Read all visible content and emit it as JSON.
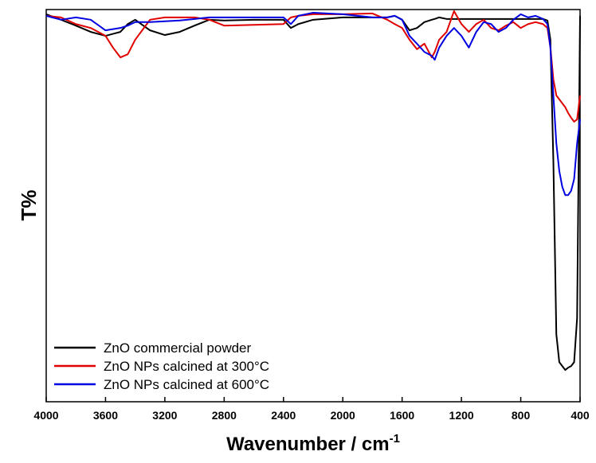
{
  "chart_data": {
    "type": "line",
    "x_label": "Wavenumber / cm",
    "x_label_superscript": "-1",
    "y_label": "T%",
    "xlim": [
      4000,
      400
    ],
    "ylim": [
      0,
      100
    ],
    "xticks": [
      4000,
      3600,
      3200,
      2800,
      2400,
      2000,
      1600,
      1200,
      800,
      400
    ],
    "legend": "lower left",
    "x": [
      4000,
      3900,
      3800,
      3700,
      3600,
      3550,
      3500,
      3450,
      3400,
      3300,
      3200,
      3100,
      3000,
      2900,
      2800,
      2600,
      2400,
      2350,
      2300,
      2200,
      2000,
      1800,
      1700,
      1650,
      1600,
      1550,
      1500,
      1450,
      1400,
      1380,
      1350,
      1300,
      1250,
      1200,
      1150,
      1100,
      1050,
      1000,
      950,
      900,
      850,
      800,
      750,
      700,
      650,
      620,
      600,
      580,
      560,
      540,
      520,
      500,
      480,
      460,
      440,
      420,
      400
    ],
    "series": [
      {
        "name": "ZnO commercial powder",
        "color": "#000000",
        "values": [
          98.8,
          97.4,
          95.9,
          94.3,
          93.3,
          93.8,
          94.3,
          96.3,
          97.4,
          94.7,
          93.5,
          94.3,
          95.9,
          97.4,
          97.2,
          97.4,
          97.4,
          95.3,
          96.3,
          97.4,
          98,
          98,
          98,
          98.4,
          97.4,
          94.7,
          95.3,
          96.8,
          97.4,
          97.6,
          98,
          97.6,
          97.6,
          97.6,
          97.6,
          97.6,
          97.6,
          97.6,
          97.6,
          97.6,
          97.6,
          97.6,
          97.6,
          97.6,
          97.6,
          97.2,
          92.3,
          61.3,
          17.2,
          10.1,
          9.1,
          8.1,
          8.7,
          9.1,
          10.1,
          21.3,
          98.4
        ]
      },
      {
        "name": "ZnO NPs calcined at 300°C",
        "color": "#e00000",
        "values": [
          98.4,
          98,
          96.3,
          95.3,
          93.3,
          90.3,
          87.8,
          88.6,
          92.3,
          97.4,
          98,
          98,
          98,
          97.4,
          95.9,
          96.1,
          96.3,
          98,
          98.4,
          98.8,
          98.8,
          99,
          97.4,
          96.3,
          95.3,
          92.3,
          89.9,
          91.3,
          87.8,
          89.2,
          92.3,
          94.3,
          99.6,
          96.3,
          94.3,
          96.3,
          97.4,
          95.3,
          94.7,
          95.9,
          96.8,
          95.3,
          96.3,
          96.8,
          96.3,
          95.3,
          90.3,
          82.2,
          78.1,
          77.1,
          76.1,
          75.1,
          73.6,
          72.4,
          71.4,
          72,
          78.1
        ]
      },
      {
        "name": "ZnO NPs calcined at 600°C",
        "color": "#0000e0",
        "values": [
          98.4,
          97.4,
          98,
          97.4,
          94.7,
          95,
          95.3,
          95.9,
          96.8,
          96.8,
          97,
          97.2,
          97.6,
          98,
          98,
          98,
          98,
          96.3,
          98.4,
          99.2,
          98.8,
          98,
          98,
          98.4,
          97.4,
          93.3,
          91.3,
          89.2,
          88.2,
          87.2,
          90.3,
          93.3,
          95.3,
          93.3,
          90.3,
          94.3,
          96.8,
          96.3,
          94.3,
          95.3,
          97.4,
          98.8,
          98,
          98.4,
          97.6,
          96.3,
          90.3,
          78.1,
          65.9,
          58.8,
          54.8,
          52.7,
          52.7,
          53.8,
          56.8,
          65.9,
          72
        ]
      }
    ]
  }
}
